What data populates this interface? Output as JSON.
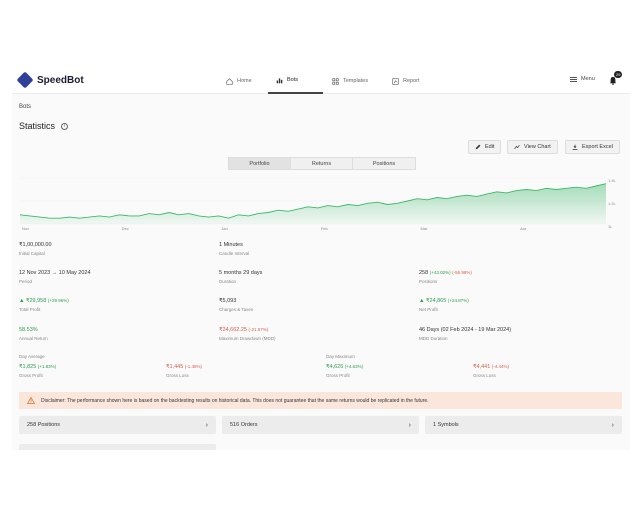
{
  "brand": {
    "name": "SpeedBot"
  },
  "nav": {
    "tabs": [
      {
        "label": "Home",
        "icon": "home-icon"
      },
      {
        "label": "Bots",
        "icon": "bar-chart-icon",
        "active": true
      },
      {
        "label": "Templates",
        "icon": "grid-icon"
      },
      {
        "label": "Report",
        "icon": "report-icon"
      }
    ],
    "menu_label": "Menu",
    "notification_count": "29"
  },
  "breadcrumb": "Bots",
  "page_title": "Statistics",
  "actions": {
    "edit": "Edit",
    "view_chart": "View Chart",
    "export": "Export Excel"
  },
  "segments": [
    "Portfolio",
    "Returns",
    "Positions"
  ],
  "chart_data": {
    "type": "area",
    "x_ticks": [
      "Nov",
      "Dec",
      "Jan",
      "Feb",
      "Mar",
      "Apr"
    ],
    "y_ticks": [
      "1.4L",
      "1.2L",
      "1L"
    ],
    "series_color": "#3cb96a",
    "values": [
      1.08,
      1.07,
      1.06,
      1.05,
      1.05,
      1.06,
      1.05,
      1.06,
      1.07,
      1.06,
      1.08,
      1.07,
      1.07,
      1.09,
      1.08,
      1.1,
      1.08,
      1.09,
      1.07,
      1.06,
      1.07,
      1.05,
      1.08,
      1.07,
      1.09,
      1.1,
      1.12,
      1.11,
      1.13,
      1.15,
      1.14,
      1.16,
      1.15,
      1.17,
      1.16,
      1.18,
      1.19,
      1.17,
      1.18,
      1.2,
      1.22,
      1.21,
      1.23,
      1.22,
      1.24,
      1.25,
      1.24,
      1.26,
      1.28,
      1.27,
      1.29,
      1.3,
      1.29,
      1.31,
      1.3,
      1.31,
      1.32,
      1.31,
      1.33,
      1.35
    ],
    "ylim": [
      1.0,
      1.4
    ]
  },
  "stats": {
    "initial_capital": {
      "value": "₹1,00,000.00",
      "label": "Initial Capital"
    },
    "candle_interval": {
      "value": "1 Minutes",
      "label": "Candle Interval"
    },
    "period": {
      "value": "12 Nov 2023 → 10 May 2024",
      "label": "Period"
    },
    "duration": {
      "value": "5 months 29 days",
      "label": "Duration"
    },
    "positions": {
      "value": "258",
      "pos": "(+43.02%)",
      "neg": "(-56.98%)",
      "label": "Positions"
    },
    "total_profit": {
      "value": "▲ ₹29,958",
      "pct": "(+29.96%)",
      "label": "Total Profit"
    },
    "charges": {
      "value": "₹5,093",
      "label": "Charges & Taxes"
    },
    "net_profit": {
      "value": "▲ ₹24,865",
      "pct": "(+24.87%)",
      "label": "Net Profit"
    },
    "annual_return": {
      "value": "58.53%",
      "label": "Annual Return"
    },
    "max_drawdown": {
      "value": "₹24,662.25",
      "pct": "(-21.57%)",
      "label": "Maximum Drawdown (MDD)"
    },
    "mdd_duration": {
      "value": "46 Days (02 Feb 2024 - 19 Mar 2024)",
      "label": "MDD Duration"
    }
  },
  "day_average": {
    "heading": "Day Average",
    "gross_profit": {
      "value": "₹1,825",
      "pct": "(+1.83%)",
      "label": "Gross Profit"
    },
    "gross_loss": {
      "value": "₹1,445",
      "pct": "(-1.45%)",
      "label": "Gross Loss"
    }
  },
  "day_maximum": {
    "heading": "Day Maximum",
    "gross_profit": {
      "value": "₹4,626",
      "pct": "(+4.63%)",
      "label": "Gross Profit"
    },
    "gross_loss": {
      "value": "₹4,441",
      "pct": "(-4.44%)",
      "label": "Gross Loss"
    }
  },
  "disclaimer": "Disclaimer: The performance shown here is based on the backtesting results on historical data. This does not guarantee that the same returns would be replicated in the future.",
  "cards": [
    "258 Positions",
    "516 Orders",
    "1 Symbols"
  ]
}
